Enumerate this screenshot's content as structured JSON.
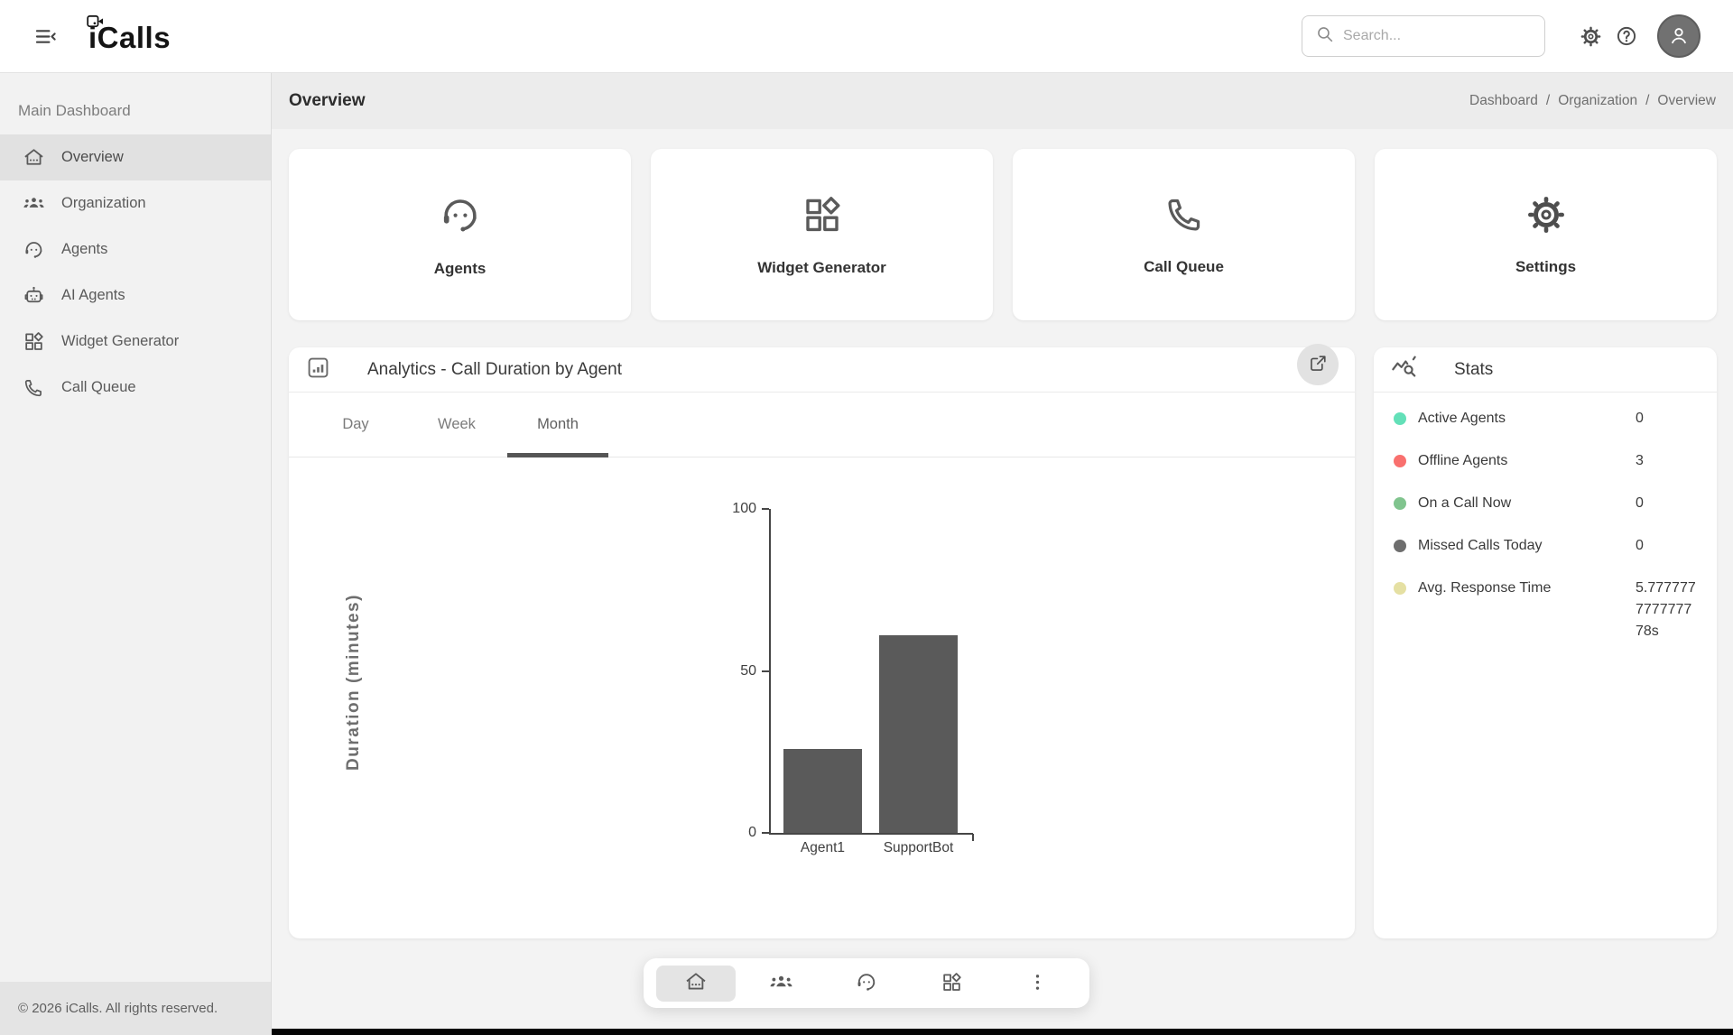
{
  "topbar": {
    "logo_text": "iCalls",
    "logo_icon": "videocam-icon",
    "menu_icon": "menu-open-icon",
    "search": {
      "placeholder": "Search...",
      "icon": "search-icon"
    },
    "actions": [
      {
        "name": "settings",
        "icon": "gear-icon"
      },
      {
        "name": "help",
        "icon": "help-icon"
      },
      {
        "name": "account",
        "icon": "person-icon"
      }
    ]
  },
  "sidebar": {
    "section_title": "Main Dashboard",
    "items": [
      {
        "label": "Overview",
        "icon": "home-icon",
        "active": true
      },
      {
        "label": "Organization",
        "icon": "groups-icon",
        "active": false
      },
      {
        "label": "Agents",
        "icon": "headset-icon",
        "active": false
      },
      {
        "label": "AI Agents",
        "icon": "robot-icon",
        "active": false
      },
      {
        "label": "Widget Generator",
        "icon": "widgets-icon",
        "active": false
      },
      {
        "label": "Call Queue",
        "icon": "phone-icon",
        "active": false
      }
    ],
    "footer": "© 2026 iCalls. All rights reserved."
  },
  "page": {
    "title": "Overview",
    "breadcrumb": [
      "Dashboard",
      "Organization",
      "Overview"
    ],
    "breadcrumb_separator": "/"
  },
  "shortcut_cards": [
    {
      "label": "Agents",
      "icon": "headset-icon"
    },
    {
      "label": "Widget Generator",
      "icon": "widgets-icon"
    },
    {
      "label": "Call Queue",
      "icon": "phone-icon"
    },
    {
      "label": "Settings",
      "icon": "gear-icon"
    }
  ],
  "analytics": {
    "icon": "analytics-icon",
    "title": "Analytics - Call Duration by Agent",
    "expand_icon": "open-in-new-icon",
    "tabs": [
      {
        "label": "Day",
        "active": false
      },
      {
        "label": "Week",
        "active": false
      },
      {
        "label": "Month",
        "active": true
      }
    ]
  },
  "chart_data": {
    "type": "bar",
    "title": "Analytics - Call Duration by Agent",
    "categories": [
      "Agent1",
      "SupportBot"
    ],
    "values": [
      26,
      61
    ],
    "xlabel": "",
    "ylabel": "Duration (minutes)",
    "ylim": [
      0,
      100
    ],
    "yticks": [
      0,
      50,
      100
    ],
    "grid": false,
    "legend": false,
    "bar_color": "#5a5a5a"
  },
  "stats": {
    "icon": "query-stats-icon",
    "title": "Stats",
    "items": [
      {
        "label": "Active Agents",
        "value": "0",
        "color": "#63e0b8"
      },
      {
        "label": "Offline Agents",
        "value": "3",
        "color": "#f9706e"
      },
      {
        "label": "On a Call Now",
        "value": "0",
        "color": "#80c48e"
      },
      {
        "label": "Missed Calls Today",
        "value": "0",
        "color": "#6e6e6e"
      },
      {
        "label": "Avg. Response Time",
        "value": "5.777777777777778s",
        "color": "#e5e0a3"
      }
    ]
  },
  "dock": {
    "items": [
      {
        "name": "home",
        "icon": "home-icon",
        "active": true
      },
      {
        "name": "organization",
        "icon": "groups-icon",
        "active": false
      },
      {
        "name": "agents",
        "icon": "headset-icon",
        "active": false
      },
      {
        "name": "widgets",
        "icon": "widgets-icon",
        "active": false
      },
      {
        "name": "more",
        "icon": "more-vert-icon",
        "active": false
      }
    ]
  },
  "colors": {
    "topbar_bg": "#ffffff",
    "sidebar_bg": "#f2f2f2",
    "header_band_bg": "#ececec",
    "content_bg": "#f3f3f3",
    "card_bg": "#ffffff",
    "active_item_bg": "#e1e1e1",
    "tab_underline": "#555555",
    "bar_color": "#5a5a5a",
    "bottom_bar": "#050505"
  }
}
